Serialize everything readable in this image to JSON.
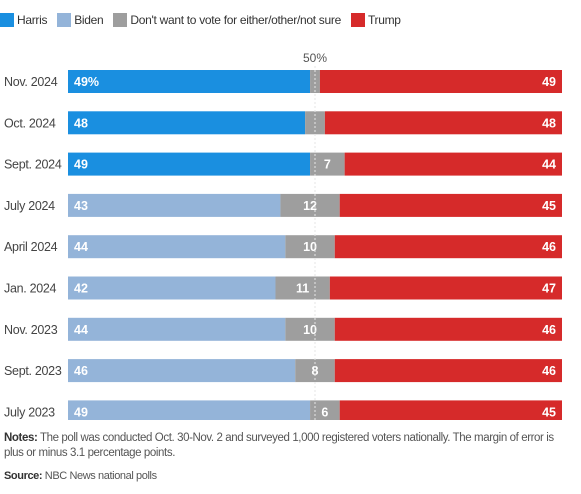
{
  "legend": {
    "harris": "Harris",
    "biden": "Biden",
    "neither": "Don't want to vote for either/other/not sure",
    "trump": "Trump"
  },
  "colors": {
    "harris": "#1a8fe0",
    "biden": "#94b4d9",
    "neither": "#9e9e9e",
    "trump": "#d62a2a",
    "axis_line": "#cfcfcf"
  },
  "notes": {
    "label": "Notes:",
    "text": " The poll was conducted Oct. 30-Nov. 2 and surveyed 1,000 registered voters nationally. The margin of error is plus or minus 3.1 percentage points."
  },
  "source": {
    "label": "Source:",
    "text": " NBC News national polls"
  },
  "chart_data": {
    "type": "bar",
    "orientation": "horizontal",
    "stacked": true,
    "reference_line": {
      "value": 50,
      "label": "50%"
    },
    "categories": [
      "Nov. 2024",
      "Oct. 2024",
      "Sept. 2024",
      "July 2024",
      "April 2024",
      "Jan. 2024",
      "Nov. 2023",
      "Sept. 2023",
      "July 2023"
    ],
    "rows": [
      {
        "category": "Nov. 2024",
        "dem_candidate": "harris",
        "dem": 49,
        "dem_label": "49%",
        "neither": 2,
        "neither_label": "",
        "trump": 49,
        "trump_label": "49"
      },
      {
        "category": "Oct. 2024",
        "dem_candidate": "harris",
        "dem": 48,
        "dem_label": "48",
        "neither": 4,
        "neither_label": "",
        "trump": 48,
        "trump_label": "48"
      },
      {
        "category": "Sept. 2024",
        "dem_candidate": "harris",
        "dem": 49,
        "dem_label": "49",
        "neither": 7,
        "neither_label": "7",
        "trump": 44,
        "trump_label": "44"
      },
      {
        "category": "July 2024",
        "dem_candidate": "biden",
        "dem": 43,
        "dem_label": "43",
        "neither": 12,
        "neither_label": "12",
        "trump": 45,
        "trump_label": "45"
      },
      {
        "category": "April 2024",
        "dem_candidate": "biden",
        "dem": 44,
        "dem_label": "44",
        "neither": 10,
        "neither_label": "10",
        "trump": 46,
        "trump_label": "46"
      },
      {
        "category": "Jan. 2024",
        "dem_candidate": "biden",
        "dem": 42,
        "dem_label": "42",
        "neither": 11,
        "neither_label": "11",
        "trump": 47,
        "trump_label": "47"
      },
      {
        "category": "Nov. 2023",
        "dem_candidate": "biden",
        "dem": 44,
        "dem_label": "44",
        "neither": 10,
        "neither_label": "10",
        "trump": 46,
        "trump_label": "46"
      },
      {
        "category": "Sept. 2023",
        "dem_candidate": "biden",
        "dem": 46,
        "dem_label": "46",
        "neither": 8,
        "neither_label": "8",
        "trump": 46,
        "trump_label": "46"
      },
      {
        "category": "July 2023",
        "dem_candidate": "biden",
        "dem": 49,
        "dem_label": "49",
        "neither": 6,
        "neither_label": "6",
        "trump": 45,
        "trump_label": "45"
      }
    ],
    "xlim": [
      0,
      100
    ],
    "grid": false,
    "legend_position": "top-left"
  }
}
